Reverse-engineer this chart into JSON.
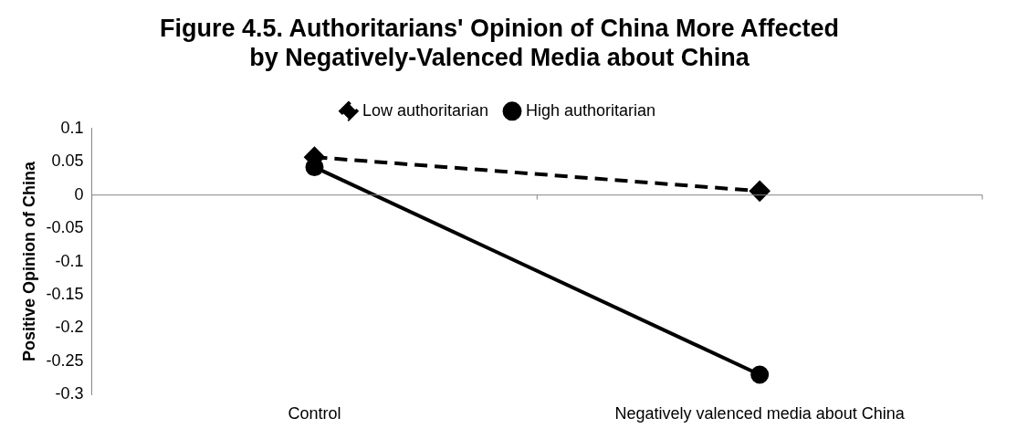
{
  "chart_data": {
    "type": "line",
    "title": "Figure 4.5. Authoritarians' Opinion of China More Affected by Negatively-Valenced Media about China",
    "ylabel": "Positive Opinion of China",
    "categories": [
      "Control",
      "Negatively valenced media about China"
    ],
    "series": [
      {
        "name": "Low authoritarian",
        "color": "#000000",
        "values": [
          0.057,
          0.006
        ],
        "marker": "diamond",
        "line_style": "dashed"
      },
      {
        "name": "High authoritarian",
        "color": "#000000",
        "values": [
          0.042,
          -0.27
        ],
        "marker": "circle",
        "line_style": "solid"
      }
    ],
    "ylim": [
      -0.3,
      0.1
    ],
    "yticks": [
      -0.3,
      -0.25,
      -0.2,
      -0.15,
      -0.1,
      -0.05,
      0,
      0.05,
      0.1
    ],
    "grid": false,
    "legend": "top",
    "ref_lines": [
      {
        "axis": "y",
        "value": 0,
        "color": "#868686"
      }
    ]
  }
}
